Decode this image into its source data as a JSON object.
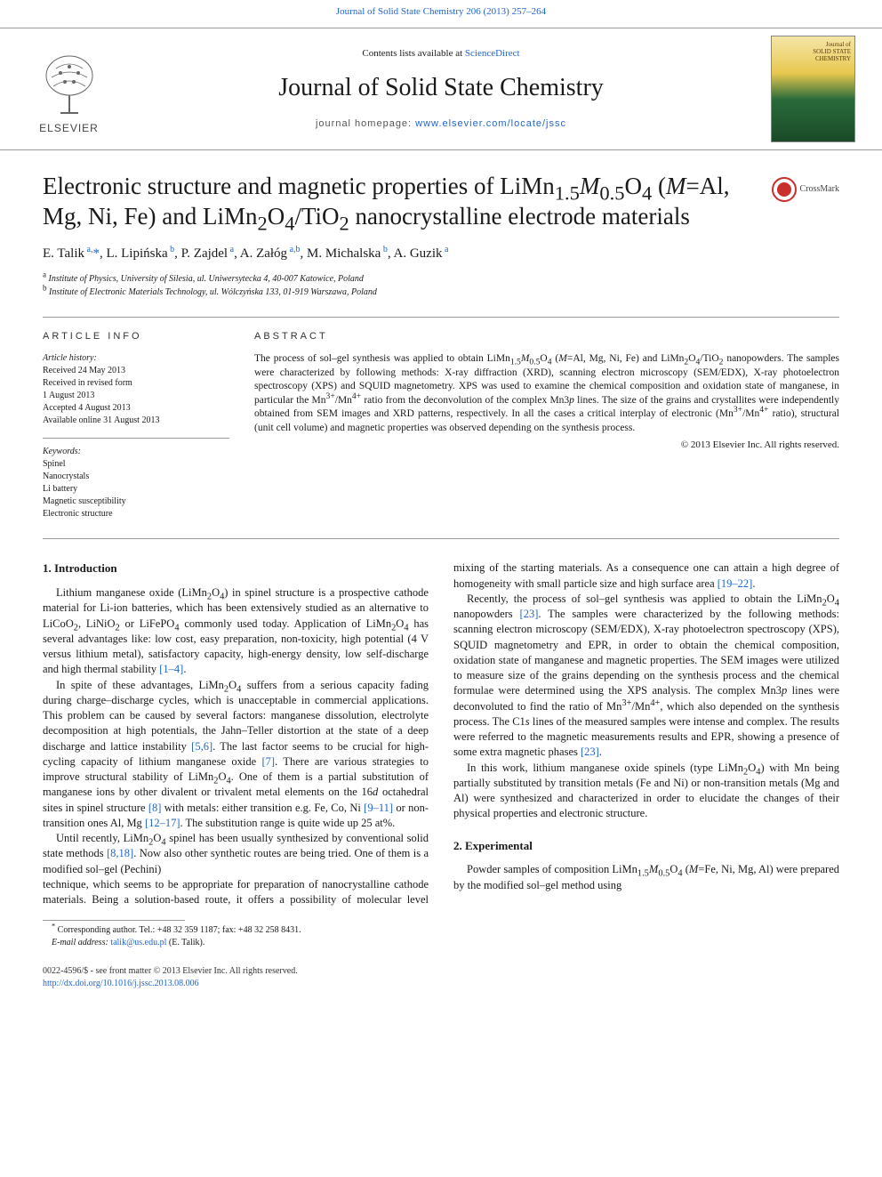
{
  "top_link": "Journal of Solid State Chemistry 206 (2013) 257–264",
  "header": {
    "contents_prefix": "Contents lists available at ",
    "contents_link": "ScienceDirect",
    "journal_title": "Journal of Solid State Chemistry",
    "homepage_prefix": "journal homepage: ",
    "homepage_url": "www.elsevier.com/locate/jssc",
    "publisher": "ELSEVIER",
    "cover_label_line1": "Journal of",
    "cover_label_line2": "SOLID STATE",
    "cover_label_line3": "CHEMISTRY"
  },
  "article": {
    "title_html": "Electronic structure and magnetic properties of LiMn<sub>1.5</sub><i>M</i><sub>0.5</sub>O<sub>4</sub> (<i>M</i>=Al, Mg, Ni, Fe) and LiMn<sub>2</sub>O<sub>4</sub>/TiO<sub>2</sub> nanocrystalline electrode materials",
    "crossmark": "CrossMark",
    "authors_html": "E. Talik<sup> a,</sup><span class=\"star-ref\">*</span>, L. Lipińska<sup> b</sup>, P. Zajdel<sup> a</sup>, A. Załóg<sup> a,b</sup>, M. Michalska<sup> b</sup>, A. Guzik<sup> a</sup>",
    "affils": [
      {
        "sup": "a",
        "text": "Institute of Physics, University of Silesia, ul. Uniwersytecka 4, 40-007 Katowice, Poland"
      },
      {
        "sup": "b",
        "text": "Institute of Electronic Materials Technology, ul. Wólczyńska 133, 01-919 Warszawa, Poland"
      }
    ]
  },
  "info": {
    "article_info_head": "ARTICLE INFO",
    "abstract_head": "ABSTRACT",
    "history_label": "Article history:",
    "history": [
      "Received 24 May 2013",
      "Received in revised form",
      "1 August 2013",
      "Accepted 4 August 2013",
      "Available online 31 August 2013"
    ],
    "keywords_label": "Keywords:",
    "keywords": [
      "Spinel",
      "Nanocrystals",
      "Li battery",
      "Magnetic susceptibility",
      "Electronic structure"
    ],
    "abstract_html": "The process of sol–gel synthesis was applied to obtain LiMn<sub>1.5</sub><i>M</i><sub>0.5</sub>O<sub>4</sub> (<i>M</i>=Al, Mg, Ni, Fe) and LiMn<sub>2</sub>O<sub>4</sub>/TiO<sub>2</sub> nanopowders. The samples were characterized by following methods: X-ray diffraction (XRD), scanning electron microscopy (SEM/EDX), X-ray photoelectron spectroscopy (XPS) and SQUID magnetometry. XPS was used to examine the chemical composition and oxidation state of manganese, in particular the Mn<sup>3+</sup>/Mn<sup>4+</sup> ratio from the deconvolution of the complex Mn3<i>p</i> lines. The size of the grains and crystallites were independently obtained from SEM images and XRD patterns, respectively. In all the cases a critical interplay of electronic (Mn<sup>3+</sup>/Mn<sup>4+</sup> ratio), structural (unit cell volume) and magnetic properties was observed depending on the synthesis process.",
    "copyright": "© 2013 Elsevier Inc. All rights reserved."
  },
  "body": {
    "sec1_head": "1.  Introduction",
    "sec1_p1_html": "Lithium manganese oxide (LiMn<sub>2</sub>O<sub>4</sub>) in spinel structure is a prospective cathode material for Li-ion batteries, which has been extensively studied as an alternative to LiCoO<sub>2</sub>, LiNiO<sub>2</sub> or LiFePO<sub>4</sub> commonly used today. Application of LiMn<sub>2</sub>O<sub>4</sub> has several advantages like: low cost, easy preparation, non-toxicity, high potential (4 V versus lithium metal), satisfactory capacity, high-energy density, low self-discharge and high thermal stability <a>[1–4]</a>.",
    "sec1_p2_html": "In spite of these advantages, LiMn<sub>2</sub>O<sub>4</sub> suffers from a serious capacity fading during charge–discharge cycles, which is unacceptable in commercial applications. This problem can be caused by several factors: manganese dissolution, electrolyte decomposition at high potentials, the Jahn–Teller distortion at the state of a deep discharge and lattice instability <a>[5,6]</a>. The last factor seems to be crucial for high-cycling capacity of lithium manganese oxide <a>[7]</a>. There are various strategies to improve structural stability of LiMn<sub>2</sub>O<sub>4</sub>. One of them is a partial substitution of manganese ions by other divalent or trivalent metal elements on the 16<i>d</i> octahedral sites in spinel structure <a>[8]</a> with metals: either transition e.g. Fe, Co, Ni <a>[9–11]</a> or non-transition ones Al, Mg <a>[12–17]</a>. The substitution range is quite wide up 25 at%.",
    "sec1_p3_html": "Until recently, LiMn<sub>2</sub>O<sub>4</sub> spinel has been usually synthesized by conventional solid state methods <a>[8,18]</a>. Now also other synthetic routes are being tried. One of them is a modified sol–gel (Pechini)",
    "sec1_p4_html": "technique, which seems to be appropriate for preparation of nanocrystalline cathode materials. Being a solution-based route, it offers a possibility of molecular level mixing of the starting materials. As a consequence one can attain a high degree of homogeneity with small particle size and high surface area <a>[19–22]</a>.",
    "sec1_p5_html": "Recently, the process of sol–gel synthesis was applied to obtain the LiMn<sub>2</sub>O<sub>4</sub> nanopowders <a>[23]</a>. The samples were characterized by the following methods: scanning electron microscopy (SEM/EDX), X-ray photoelectron spectroscopy (XPS), SQUID magnetometry and EPR, in order to obtain the chemical composition, oxidation state of manganese and magnetic properties. The SEM images were utilized to measure size of the grains depending on the synthesis process and the chemical formulae were determined using the XPS analysis. The complex Mn3<i>p</i> lines were deconvoluted to find the ratio of Mn<sup>3+</sup>/Mn<sup>4+</sup>, which also depended on the synthesis process. The C1<i>s</i> lines of the measured samples were intense and complex. The results were referred to the magnetic measurements results and EPR, showing a presence of some extra magnetic phases <a>[23]</a>.",
    "sec1_p6_html": "In this work, lithium manganese oxide spinels (type LiMn<sub>2</sub>O<sub>4</sub>) with Mn being partially substituted by transition metals (Fe and Ni) or non-transition metals (Mg and Al) were synthesized and characterized in order to elucidate the changes of their physical properties and electronic structure.",
    "sec2_head": "2.  Experimental",
    "sec2_p1_html": "Powder samples of composition LiMn<sub>1.5</sub><i>M</i><sub>0.5</sub>O<sub>4</sub> (<i>M</i>=Fe, Ni, Mg, Al) were prepared by the modified sol–gel method using"
  },
  "footnote": {
    "corr_html": "<sup>*</sup> Corresponding author. Tel.: +48 32 359 1187; fax: +48 32 258 8431.",
    "email_label": "E-mail address:",
    "email": "talik@us.edu.pl",
    "email_who": "(E. Talik)."
  },
  "bottom": {
    "issn": "0022-4596/$ - see front matter © 2013 Elsevier Inc. All rights reserved.",
    "doi": "http://dx.doi.org/10.1016/j.jssc.2013.08.006"
  },
  "colors": {
    "link": "#2266cc",
    "rule": "#999999",
    "text": "#1a1a1a"
  }
}
